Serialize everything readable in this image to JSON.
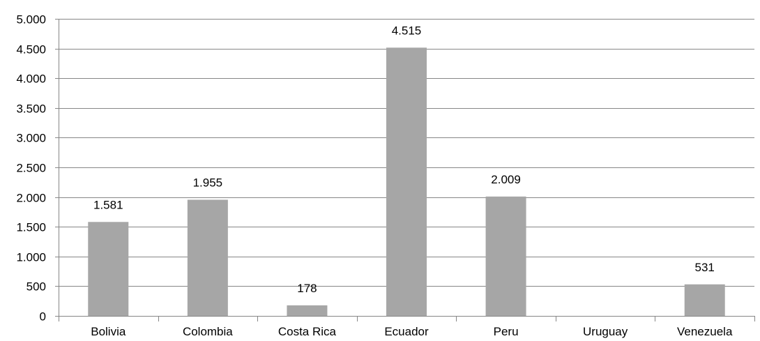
{
  "chart_data": {
    "type": "bar",
    "categories": [
      "Bolivia",
      "Colombia",
      "Costa Rica",
      "Ecuador",
      "Peru",
      "Uruguay",
      "Venezuela"
    ],
    "values": [
      1581,
      1955,
      178,
      4515,
      2009,
      null,
      531
    ],
    "data_labels": [
      "1.581",
      "1.955",
      "178",
      "4.515",
      "2.009",
      "",
      "531"
    ],
    "title": "",
    "xlabel": "",
    "ylabel": "",
    "ylim": [
      0,
      5000
    ],
    "yticks": [
      0,
      500,
      1000,
      1500,
      2000,
      2500,
      3000,
      3500,
      4000,
      4500,
      5000
    ],
    "ytick_labels": [
      "0",
      "500",
      "1.000",
      "1.500",
      "2.000",
      "2.500",
      "3.000",
      "3.500",
      "4.000",
      "4.500",
      "5.000"
    ],
    "grid": true,
    "legend": "none",
    "bar_color": "#a6a6a6",
    "grid_color": "#868686"
  }
}
